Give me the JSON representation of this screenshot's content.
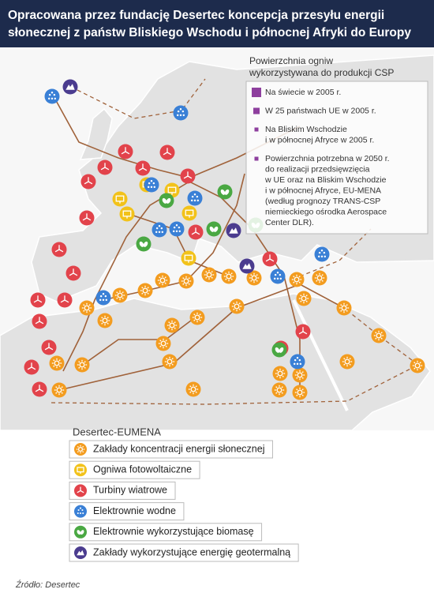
{
  "header": {
    "title": [
      "Opracowana przez fundację Desertec koncepcja przesyłu energii",
      "słonecznej z państw Bliskiego Wschodu i północnej Afryki do Europy"
    ]
  },
  "csp_legend": {
    "title": [
      "Powierzchnia ogniw",
      "wykorzystywana do produkcji CSP"
    ],
    "color": "#8e3f9e",
    "items": [
      {
        "lines": [
          "Na świecie w 2005 r."
        ]
      },
      {
        "lines": [
          "W 25 państwach UE w 2005 r."
        ]
      },
      {
        "lines": [
          "Na Bliskim Wschodzie",
          "i w północnej Afryce w 2005 r."
        ]
      },
      {
        "lines": [
          "Powierzchnia potrzebna w 2050 r.",
          "do realizacji przedsięwzięcia",
          "w UE oraz na Bliskim Wschodzie",
          "i w północnej Afryce, EU-MENA",
          "(według prognozy TRANS-CSP",
          "niemieckiego ośrodka Aerospace",
          "Center DLR)."
        ]
      }
    ]
  },
  "legend": {
    "title": "Desertec-EUMENA",
    "items": [
      {
        "label": "Zakłady koncentracji energii słonecznej",
        "color": "#f39c1f"
      },
      {
        "label": "Ogniwa fotowoltaiczne",
        "color": "#f2c21a"
      },
      {
        "label": "Turbiny wiatrowe",
        "color": "#e2434b"
      },
      {
        "label": "Elektrownie wodne",
        "color": "#3a80d6"
      },
      {
        "label": "Elektrownie wykorzystujące biomasę",
        "color": "#4aa843"
      },
      {
        "label": "Zakłady wykorzystujące energię geotermalną",
        "color": "#4b3c8f"
      }
    ]
  },
  "source": "Źródło: Desertec"
}
